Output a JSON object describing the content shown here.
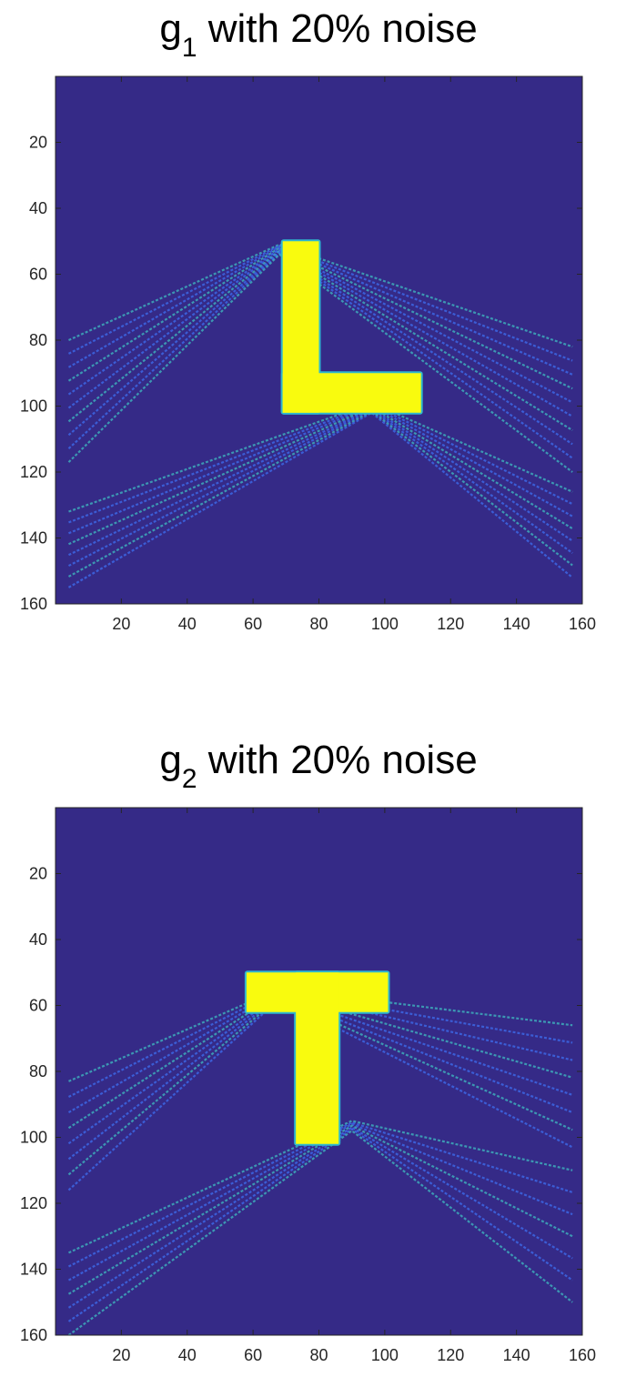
{
  "chart_data": [
    {
      "type": "heatmap",
      "title": {
        "base": "g",
        "subscript": "1",
        "rest": " with 20% noise"
      },
      "xlabel": "",
      "ylabel": "",
      "xlim": [
        0,
        160
      ],
      "ylim": [
        160,
        0
      ],
      "xticks": [
        20,
        40,
        60,
        80,
        100,
        120,
        140,
        160
      ],
      "xtick_labels": [
        "20",
        "40",
        "60",
        "80",
        "100",
        "120",
        "140",
        "160"
      ],
      "yticks": [
        20,
        40,
        60,
        80,
        100,
        120,
        140,
        160
      ],
      "ytick_labels": [
        "20",
        "40",
        "60",
        "80",
        "100",
        "120",
        "140",
        "160"
      ],
      "colormap": "parula",
      "background_color": "#352a87",
      "shape_color": "#f9fb0e",
      "shape": "L",
      "shape_rects": [
        {
          "x0": 69,
          "x1": 80,
          "y0": 50,
          "y1": 102
        },
        {
          "x0": 69,
          "x1": 111,
          "y0": 90,
          "y1": 102
        }
      ],
      "streak_groups": [
        {
          "apex": [
            68,
            51
          ],
          "left_y": [
            80,
            117
          ],
          "right_y": [
            82,
            120
          ],
          "count": 10
        },
        {
          "apex": [
            96,
            99
          ],
          "left_y": [
            132,
            155
          ],
          "right_y": [
            126,
            152
          ],
          "count": 8
        }
      ],
      "grid": false
    },
    {
      "type": "heatmap",
      "title": {
        "base": "g",
        "subscript": "2",
        "rest": " with 20% noise"
      },
      "xlabel": "",
      "ylabel": "",
      "xlim": [
        0,
        160
      ],
      "ylim": [
        160,
        0
      ],
      "xticks": [
        20,
        40,
        60,
        80,
        100,
        120,
        140,
        160
      ],
      "xtick_labels": [
        "20",
        "40",
        "60",
        "80",
        "100",
        "120",
        "140",
        "160"
      ],
      "yticks": [
        20,
        40,
        60,
        80,
        100,
        120,
        140,
        160
      ],
      "ytick_labels": [
        "20",
        "40",
        "60",
        "80",
        "100",
        "120",
        "140",
        "160"
      ],
      "colormap": "parula",
      "background_color": "#352a87",
      "shape_color": "#f9fb0e",
      "shape": "T",
      "shape_rects": [
        {
          "x0": 58,
          "x1": 101,
          "y0": 50,
          "y1": 62
        },
        {
          "x0": 73,
          "x1": 86,
          "y0": 50,
          "y1": 102
        }
      ],
      "streak_groups": [
        {
          "apex": [
            68,
            55
          ],
          "left_y": [
            83,
            116
          ],
          "right_y": [
            66,
            103
          ],
          "count": 8
        },
        {
          "apex": [
            90,
            95
          ],
          "left_y": [
            135,
            160
          ],
          "right_y": [
            110,
            150
          ],
          "count": 7
        }
      ],
      "grid": false
    }
  ]
}
